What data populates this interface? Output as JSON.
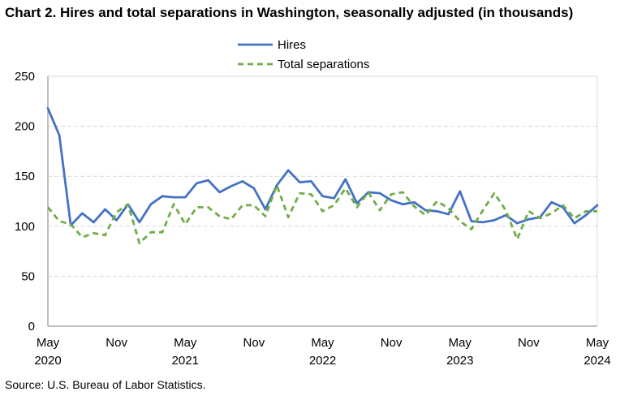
{
  "title": "Chart 2. Hires and total separations in Washington, seasonally adjusted (in thousands)",
  "source": "Source: U.S. Bureau of Labor Statistics.",
  "chart_data": {
    "type": "line",
    "title": "Chart 2. Hires and total separations in Washington, seasonally adjusted (in thousands)",
    "xlabel": "",
    "ylabel": "",
    "ylim": [
      0,
      250
    ],
    "yticks": [
      0,
      50,
      100,
      150,
      200,
      250
    ],
    "grid": true,
    "legend_position": "top-center",
    "x_range": [
      "May 2020",
      "May 2024"
    ],
    "x_ticks": [
      {
        "month": "May",
        "year": "2020",
        "index": 0
      },
      {
        "month": "Nov",
        "year": "",
        "index": 6
      },
      {
        "month": "May",
        "year": "2021",
        "index": 12
      },
      {
        "month": "Nov",
        "year": "",
        "index": 18
      },
      {
        "month": "May",
        "year": "2022",
        "index": 24
      },
      {
        "month": "Nov",
        "year": "",
        "index": 30
      },
      {
        "month": "May",
        "year": "2023",
        "index": 36
      },
      {
        "month": "Nov",
        "year": "",
        "index": 42
      },
      {
        "month": "May",
        "year": "2024",
        "index": 48
      }
    ],
    "series": [
      {
        "name": "Hires",
        "color": "#4472c4",
        "style": "solid",
        "values": [
          218,
          191,
          101,
          113,
          104,
          117,
          106,
          122,
          104,
          122,
          130,
          129,
          129,
          143,
          146,
          134,
          140,
          145,
          138,
          117,
          141,
          156,
          144,
          145,
          130,
          128,
          147,
          123,
          134,
          133,
          126,
          122,
          124,
          116,
          115,
          112,
          135,
          105,
          104,
          106,
          111,
          103,
          107,
          109,
          124,
          119,
          103,
          111,
          121
        ]
      },
      {
        "name": "Total separations",
        "color": "#70ad47",
        "style": "dashed",
        "values": [
          119,
          105,
          102,
          89,
          93,
          91,
          114,
          122,
          83,
          94,
          94,
          122,
          102,
          119,
          119,
          110,
          107,
          121,
          121,
          110,
          141,
          109,
          133,
          132,
          115,
          121,
          138,
          119,
          134,
          116,
          132,
          134,
          120,
          111,
          125,
          118,
          105,
          97,
          116,
          133,
          116,
          87,
          115,
          108,
          113,
          121,
          108,
          115,
          115
        ]
      }
    ]
  }
}
